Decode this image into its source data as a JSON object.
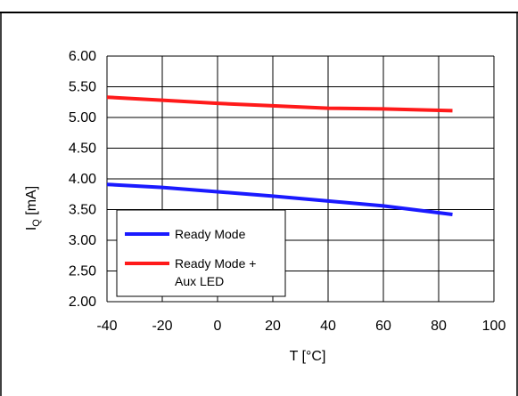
{
  "chart_data": {
    "type": "line",
    "title": "",
    "xlabel": "T [°C]",
    "ylabel": "I",
    "ylabel_subscript": "Q",
    "ylabel_unit": " [mA]",
    "xlim": [
      -40,
      100
    ],
    "ylim": [
      2.0,
      6.0
    ],
    "x_ticks": [
      -40,
      -20,
      0,
      20,
      40,
      60,
      80,
      100
    ],
    "x_tick_labels": [
      "-40",
      "-20",
      "0",
      "20",
      "40",
      "60",
      "80",
      "100"
    ],
    "y_ticks": [
      2.0,
      2.5,
      3.0,
      3.5,
      4.0,
      4.5,
      5.0,
      5.5,
      6.0
    ],
    "y_tick_labels": [
      "2.00",
      "2.50",
      "3.00",
      "3.50",
      "4.00",
      "4.50",
      "5.00",
      "5.50",
      "6.00"
    ],
    "grid": true,
    "legend_position": "bottom-left",
    "series": [
      {
        "name": "Ready Mode",
        "color": "#1a1aff",
        "x": [
          -40,
          -20,
          0,
          20,
          40,
          60,
          85
        ],
        "y": [
          3.91,
          3.86,
          3.79,
          3.72,
          3.64,
          3.56,
          3.42
        ]
      },
      {
        "name_line1": "Ready Mode +",
        "name_line2": "Aux LED",
        "color": "#ff1a1a",
        "x": [
          -40,
          -20,
          0,
          20,
          40,
          60,
          85
        ],
        "y": [
          5.33,
          5.28,
          5.23,
          5.19,
          5.15,
          5.14,
          5.11
        ]
      }
    ]
  }
}
